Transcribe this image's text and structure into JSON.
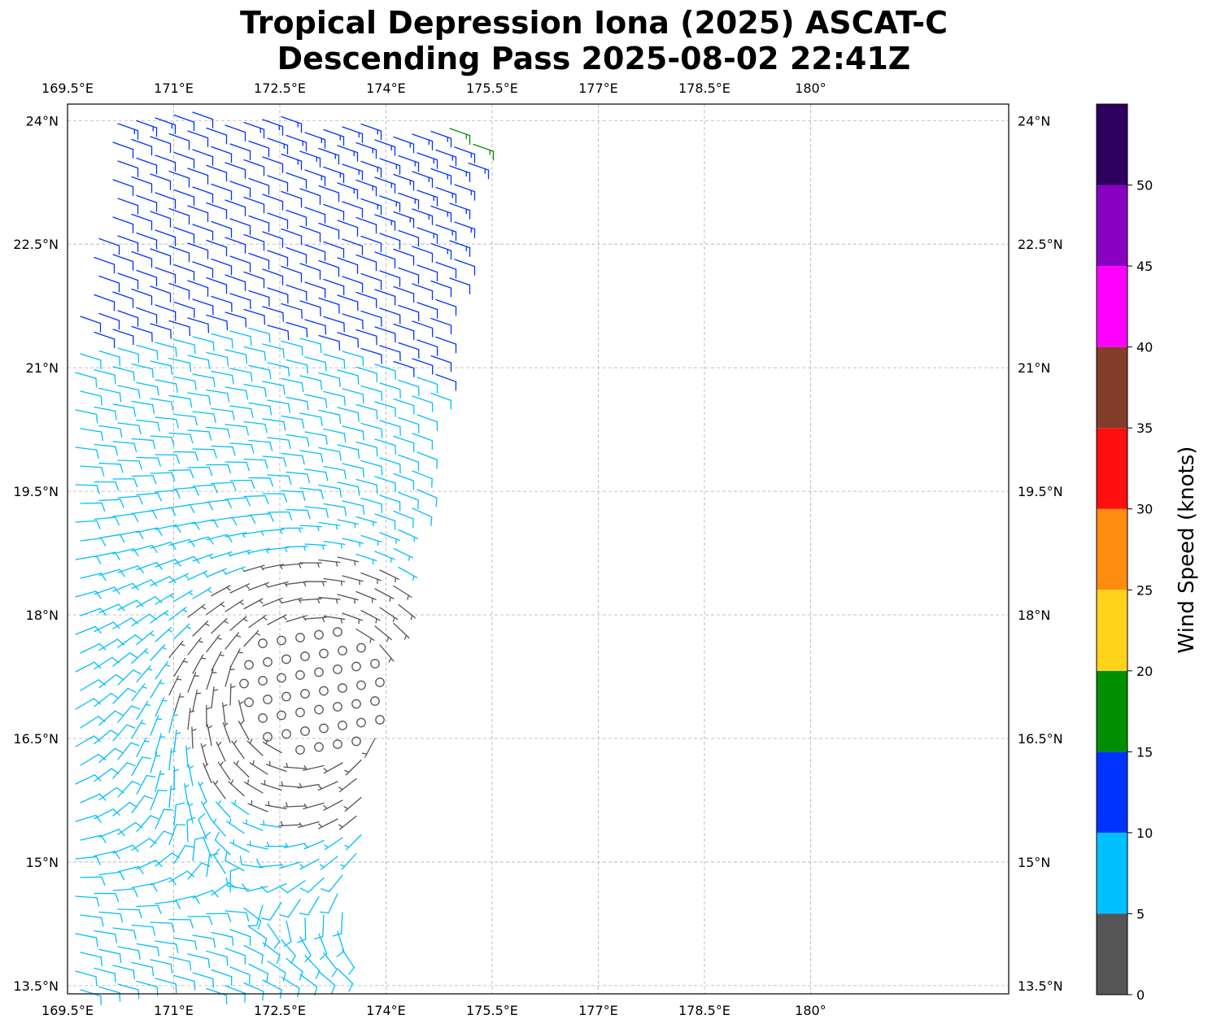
{
  "title": {
    "line1": "Tropical Depression Iona (2025) ASCAT-C",
    "line2": "Descending Pass 2025-08-02 22:41Z"
  },
  "map": {
    "lon_range": [
      169.5,
      182.8
    ],
    "lat_range": [
      13.4,
      24.2
    ],
    "lon_ticks": [
      {
        "value": 169.5,
        "label": "169.5°E"
      },
      {
        "value": 171.0,
        "label": "171°E"
      },
      {
        "value": 172.5,
        "label": "172.5°E"
      },
      {
        "value": 174.0,
        "label": "174°E"
      },
      {
        "value": 175.5,
        "label": "175.5°E"
      },
      {
        "value": 177.0,
        "label": "177°E"
      },
      {
        "value": 178.5,
        "label": "178.5°E"
      },
      {
        "value": 180.0,
        "label": "180°"
      }
    ],
    "lat_ticks": [
      {
        "value": 24.0,
        "label": "24°N"
      },
      {
        "value": 22.5,
        "label": "22.5°N"
      },
      {
        "value": 21.0,
        "label": "21°N"
      },
      {
        "value": 19.5,
        "label": "19.5°N"
      },
      {
        "value": 18.0,
        "label": "18°N"
      },
      {
        "value": 16.5,
        "label": "16.5°N"
      },
      {
        "value": 15.0,
        "label": "15°N"
      },
      {
        "value": 13.5,
        "label": "13.5°N"
      }
    ],
    "grid": true,
    "swath": {
      "corners_lonlat": [
        [
          170.2,
          24.2
        ],
        [
          175.3,
          23.9
        ],
        [
          173.3,
          13.4
        ],
        [
          169.5,
          13.4
        ],
        [
          169.5,
          20.8
        ]
      ]
    },
    "circulation_center": {
      "lon": 173.0,
      "lat": 17.1
    }
  },
  "colorbar": {
    "label": "Wind Speed (knots)",
    "bins": [
      {
        "min": 0,
        "max": 5,
        "color": "#555555"
      },
      {
        "min": 5,
        "max": 10,
        "color": "#00bfff"
      },
      {
        "min": 10,
        "max": 15,
        "color": "#0033ff"
      },
      {
        "min": 15,
        "max": 20,
        "color": "#008f00"
      },
      {
        "min": 20,
        "max": 25,
        "color": "#ffd319"
      },
      {
        "min": 25,
        "max": 30,
        "color": "#ff8c0f"
      },
      {
        "min": 30,
        "max": 35,
        "color": "#ff0f0f"
      },
      {
        "min": 35,
        "max": 40,
        "color": "#823d2a"
      },
      {
        "min": 40,
        "max": 45,
        "color": "#ff00ff"
      },
      {
        "min": 45,
        "max": 50,
        "color": "#8a00c0"
      },
      {
        "min": 50,
        "max": 55,
        "color": "#2d0060"
      }
    ],
    "tick_values": [
      0,
      5,
      10,
      15,
      20,
      25,
      30,
      35,
      40,
      45,
      50
    ],
    "tick_labels": [
      "0",
      "5",
      "10",
      "15",
      "20",
      "25",
      "30",
      "35",
      "40",
      "45",
      "50"
    ]
  }
}
